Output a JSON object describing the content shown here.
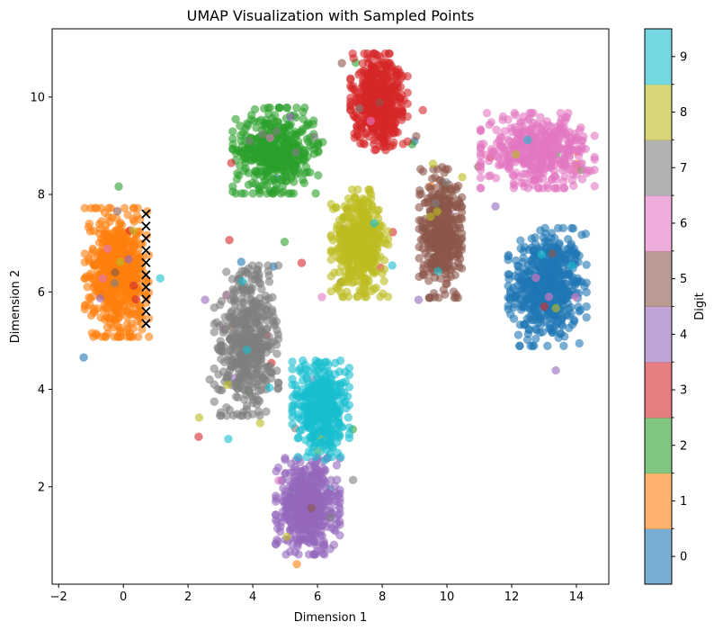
{
  "chart_data": {
    "type": "scatter",
    "title": "UMAP Visualization with Sampled Points",
    "xlabel": "Dimension 1",
    "ylabel": "Dimension 2",
    "xlim": [
      -2.2,
      15.0
    ],
    "ylim": [
      0.0,
      11.4
    ],
    "xticks": [
      -2,
      0,
      2,
      4,
      6,
      8,
      10,
      12,
      14
    ],
    "yticks": [
      2,
      4,
      6,
      8,
      10
    ],
    "grid": false,
    "point_alpha": 0.6,
    "colorbar": {
      "label": "Digit",
      "ticks": [
        "0",
        "1",
        "2",
        "3",
        "4",
        "5",
        "6",
        "7",
        "8",
        "9"
      ],
      "colors": [
        "#1f77b4",
        "#ff7f0e",
        "#2ca02c",
        "#d62728",
        "#9467bd",
        "#8c564b",
        "#e377c2",
        "#7f7f7f",
        "#bcbd22",
        "#17becf"
      ]
    },
    "clusters": [
      {
        "digit": "0",
        "center": [
          13.1,
          6.1
        ],
        "spread": [
          0.55,
          0.55
        ],
        "n": 520
      },
      {
        "digit": "1",
        "center": [
          -0.2,
          6.4
        ],
        "spread": [
          0.45,
          0.6
        ],
        "n": 600
      },
      {
        "digit": "2",
        "center": [
          4.7,
          8.9
        ],
        "spread": [
          0.6,
          0.4
        ],
        "n": 450
      },
      {
        "digit": "3",
        "center": [
          7.9,
          9.9
        ],
        "spread": [
          0.4,
          0.45
        ],
        "n": 480
      },
      {
        "digit": "4",
        "center": [
          5.7,
          1.6
        ],
        "spread": [
          0.45,
          0.45
        ],
        "n": 480
      },
      {
        "digit": "5",
        "center": [
          9.8,
          7.2
        ],
        "spread": [
          0.3,
          0.6
        ],
        "n": 420
      },
      {
        "digit": "6",
        "center": [
          12.8,
          8.9
        ],
        "spread": [
          0.8,
          0.35
        ],
        "n": 420
      },
      {
        "digit": "7",
        "center": [
          3.8,
          5.0
        ],
        "spread": [
          0.45,
          0.7
        ],
        "n": 450
      },
      {
        "digit": "8",
        "center": [
          7.3,
          7.0
        ],
        "spread": [
          0.4,
          0.5
        ],
        "n": 420
      },
      {
        "digit": "9",
        "center": [
          6.1,
          3.6
        ],
        "spread": [
          0.4,
          0.45
        ],
        "n": 380
      }
    ],
    "sampled_points": {
      "marker": "x",
      "color": "#000000",
      "x": [
        0.7,
        0.7,
        0.7,
        0.7,
        0.7,
        0.7,
        0.7,
        0.7,
        0.7,
        0.7
      ],
      "y": [
        5.35,
        5.6,
        5.85,
        6.1,
        6.35,
        6.6,
        6.85,
        7.1,
        7.35,
        7.6
      ]
    }
  }
}
